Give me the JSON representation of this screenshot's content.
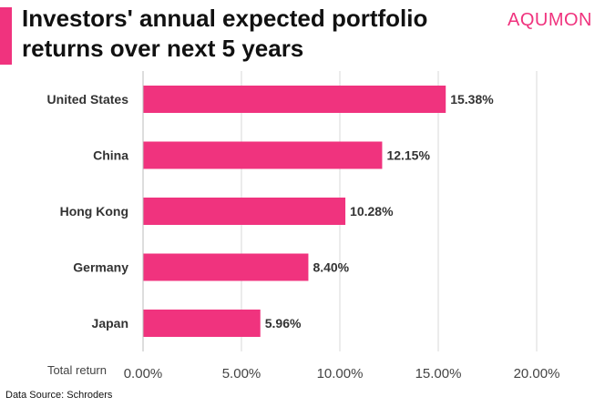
{
  "header": {
    "title": "Investors' annual expected portfolio returns over next 5 years",
    "brand": "AQUMON"
  },
  "footer": {
    "source": "Data Source: Schroders"
  },
  "colors": {
    "accent": "#f0337e",
    "grid": "#d9d9d9",
    "text": "#333333"
  },
  "chart_data": {
    "type": "bar",
    "orientation": "horizontal",
    "categories": [
      "United States",
      "China",
      "Hong Kong",
      "Germany",
      "Japan"
    ],
    "values": [
      15.38,
      12.15,
      10.28,
      8.4,
      5.96
    ],
    "value_labels": [
      "15.38%",
      "12.15%",
      "10.28%",
      "8.40%",
      "5.96%"
    ],
    "xlabel": "Total return",
    "xlim": [
      0,
      20
    ],
    "xticks": [
      0,
      5,
      10,
      15,
      20
    ],
    "xtick_labels": [
      "0.00%",
      "5.00%",
      "10.00%",
      "15.00%",
      "20.00%"
    ],
    "grid": true,
    "bar_color": "#f0337e"
  }
}
